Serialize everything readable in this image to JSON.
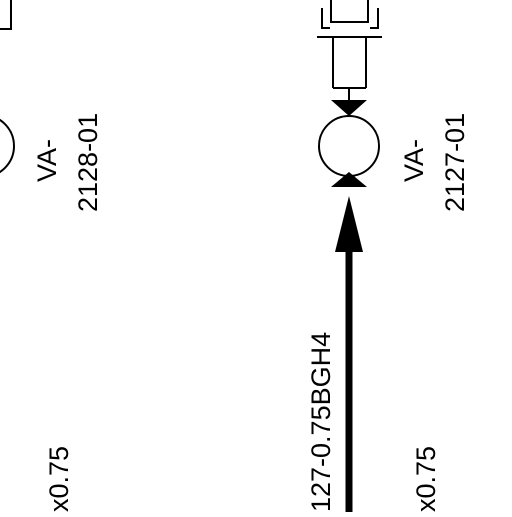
{
  "diagram": {
    "colors": {
      "line": "#000000",
      "background": "#ffffff"
    },
    "valves": [
      {
        "id": "va-2128",
        "tag_prefix": "VA-",
        "tag_number": "2128-01"
      },
      {
        "id": "va-2127",
        "tag_prefix": "VA-",
        "tag_number": "2127-01"
      }
    ],
    "lines": [
      {
        "id": "line-2127",
        "label": "127-0.75BGH4"
      }
    ],
    "size_labels": [
      {
        "id": "size-left",
        "text": "x0.75"
      },
      {
        "id": "size-right",
        "text": "x0.75"
      }
    ]
  }
}
